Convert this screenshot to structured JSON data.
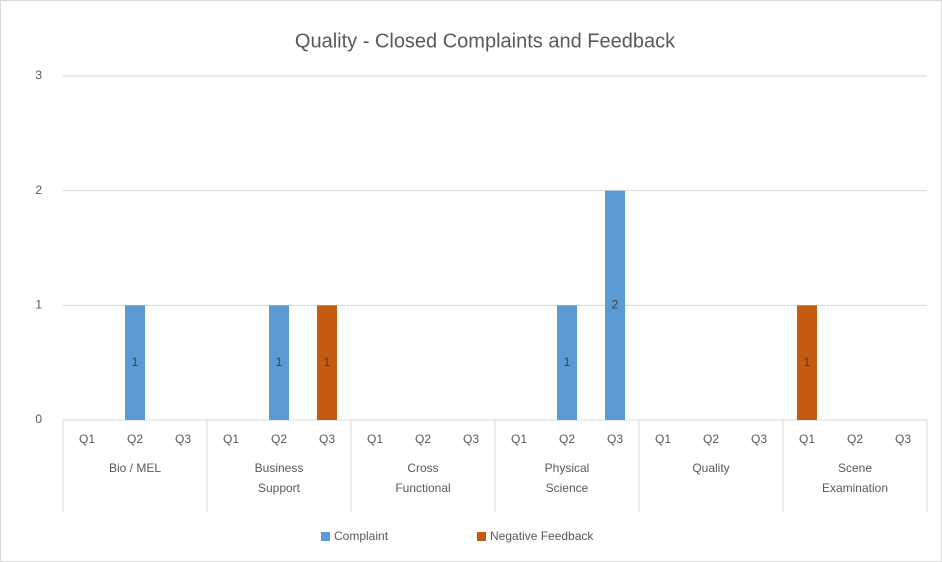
{
  "chart_data": {
    "type": "bar",
    "stacked": true,
    "title": "Quality - Closed Complaints and Feedback",
    "groups": [
      {
        "name": "Bio / MEL",
        "categories": [
          "Q1",
          "Q2",
          "Q3"
        ]
      },
      {
        "name": "Business Support",
        "categories": [
          "Q1",
          "Q2",
          "Q3"
        ]
      },
      {
        "name": "Cross Functional",
        "categories": [
          "Q1",
          "Q2",
          "Q3"
        ]
      },
      {
        "name": "Physical Science",
        "categories": [
          "Q1",
          "Q2",
          "Q3"
        ]
      },
      {
        "name": "Quality",
        "categories": [
          "Q1",
          "Q2",
          "Q3"
        ]
      },
      {
        "name": "Scene Examination",
        "categories": [
          "Q1",
          "Q2",
          "Q3"
        ]
      }
    ],
    "series": [
      {
        "name": "Complaint",
        "color": "#5b9bd5",
        "values": [
          null,
          1,
          null,
          null,
          1,
          null,
          null,
          null,
          null,
          null,
          1,
          2,
          null,
          null,
          null,
          null,
          null,
          null
        ]
      },
      {
        "name": "Negative Feedback",
        "color": "#c55a11",
        "values": [
          null,
          null,
          null,
          null,
          null,
          1,
          null,
          null,
          null,
          null,
          null,
          null,
          null,
          null,
          null,
          1,
          null,
          null
        ]
      }
    ],
    "ylim": [
      0,
      3
    ],
    "yticks": [
      0,
      1,
      2,
      3
    ],
    "grid": true,
    "legend": "bottom",
    "data_labels": true
  }
}
